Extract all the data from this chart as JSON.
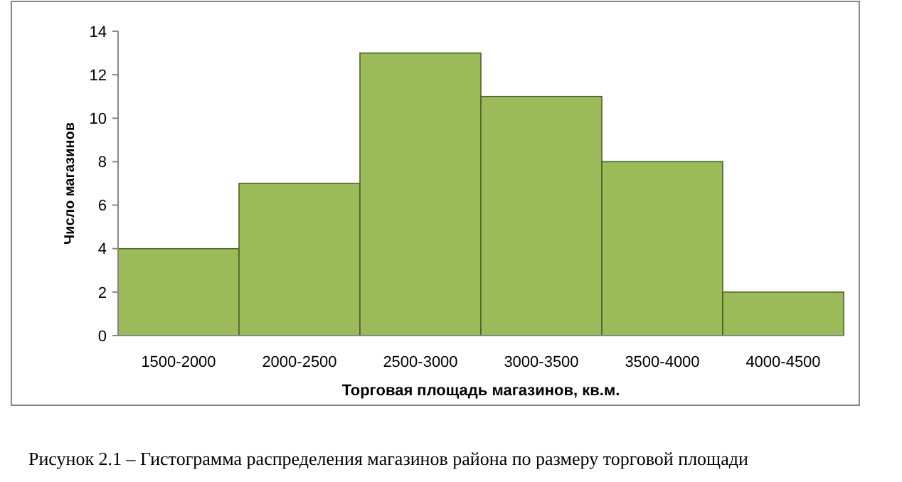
{
  "chart_data": {
    "type": "bar",
    "categories": [
      "1500-2000",
      "2000-2500",
      "2500-3000",
      "3000-3500",
      "3500-4000",
      "4000-4500"
    ],
    "values": [
      4,
      7,
      13,
      11,
      8,
      2
    ],
    "color": "#9bbb59",
    "ylim": [
      0,
      14
    ],
    "yticks": [
      0,
      2,
      4,
      6,
      8,
      10,
      12,
      14
    ],
    "xlabel": "Торговая площадь магазинов, кв.м.",
    "ylabel": "Число магазинов",
    "annotations": [
      "Рисунок 2.1 – Гистограмма распределения магазинов района по размеру торговой площади"
    ],
    "grid": false
  }
}
